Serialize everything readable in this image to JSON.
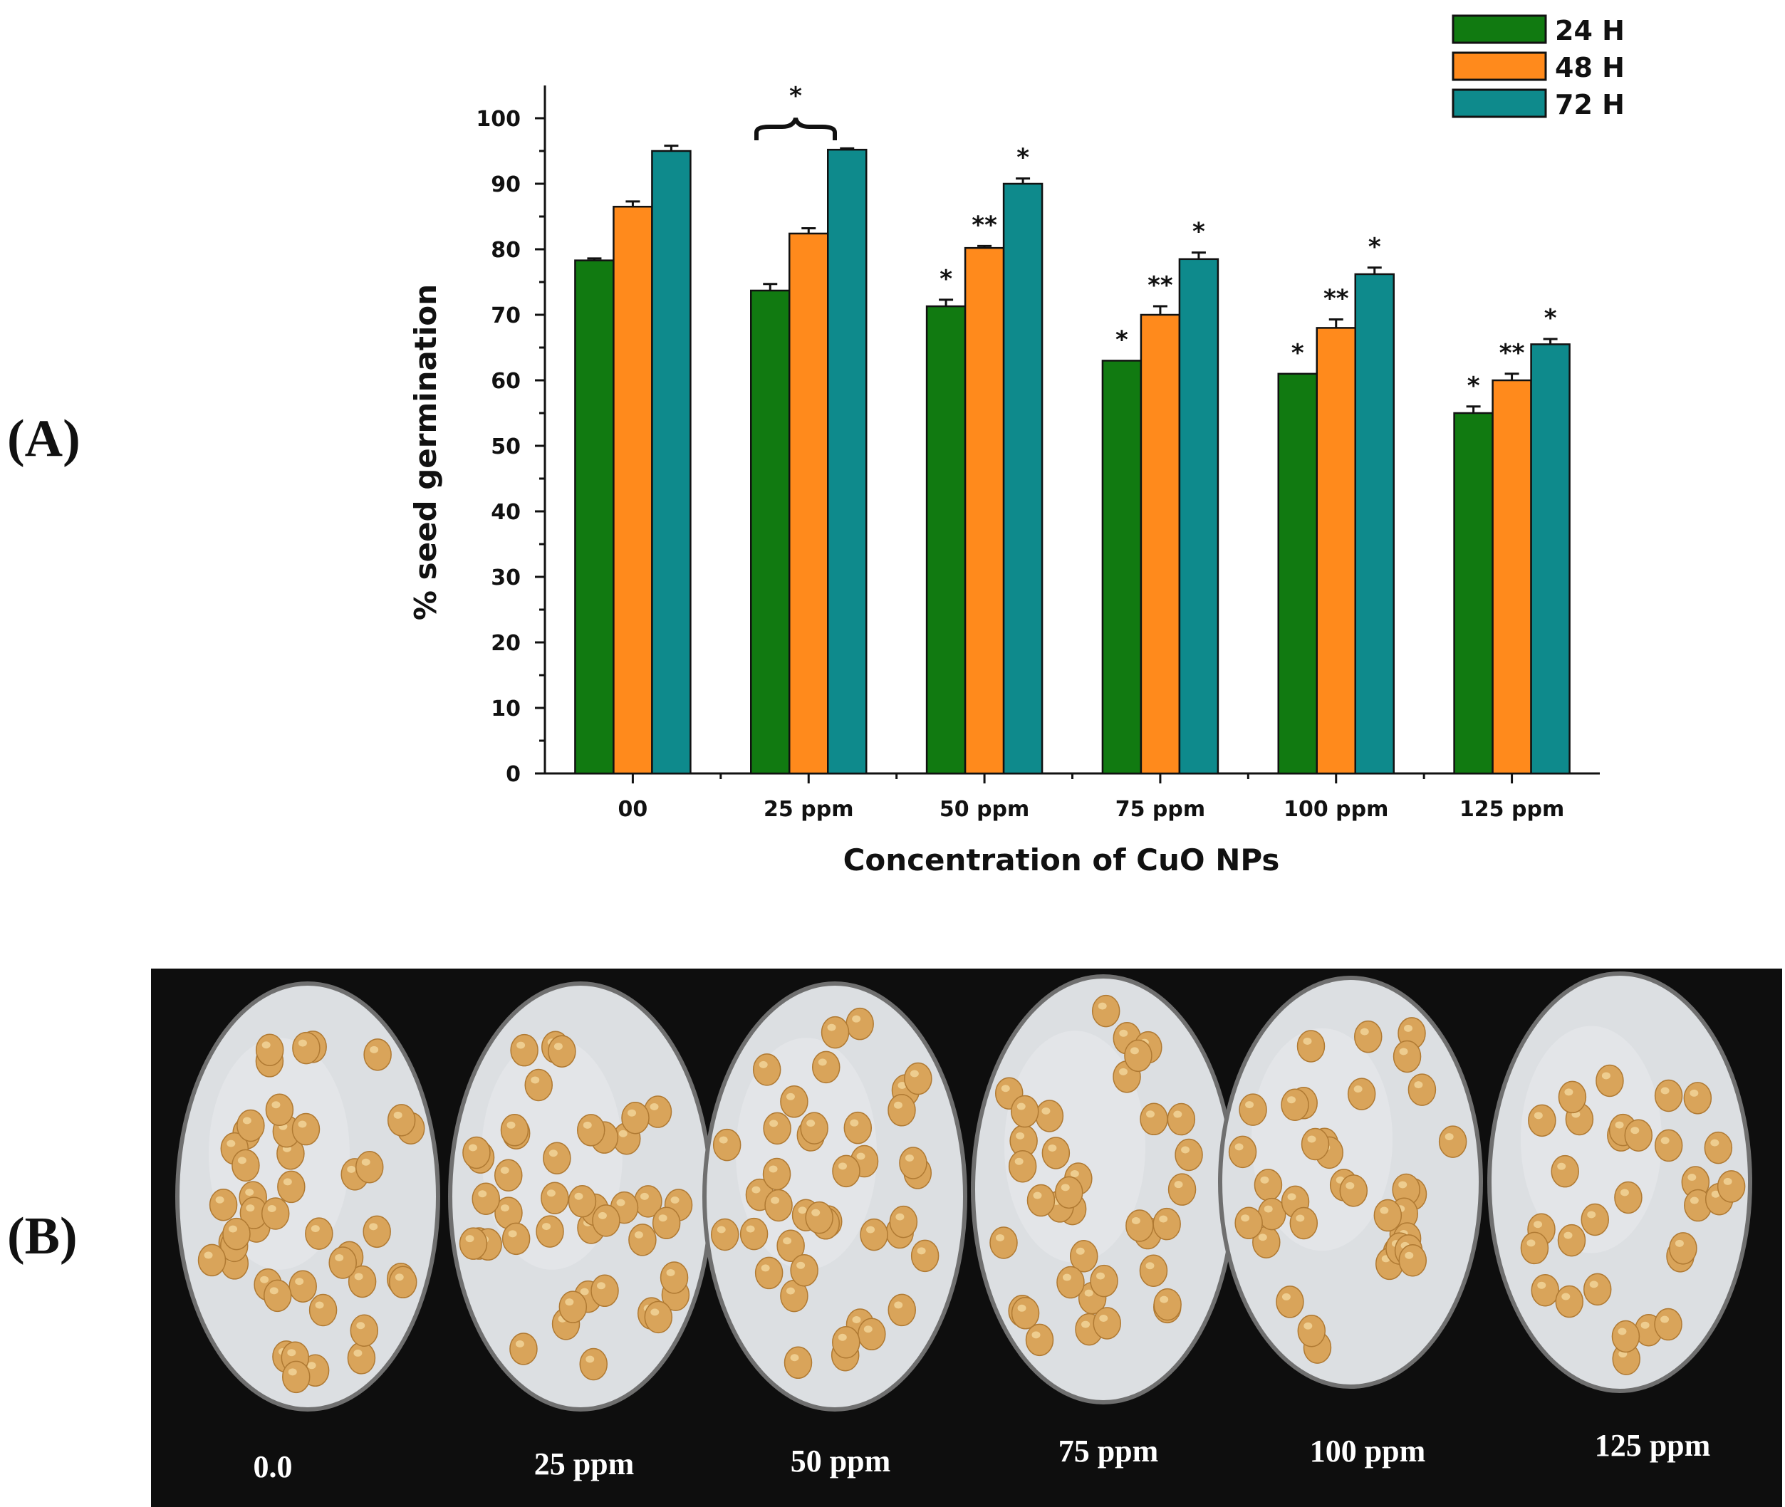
{
  "panels": {
    "a_label": "(A)",
    "b_label": "(B)"
  },
  "colors": {
    "s24": "#117a11",
    "s48": "#ff8a1c",
    "s72": "#0e8a8c",
    "photo_bg": "#0e0e0e",
    "seed": "#d9a45a"
  },
  "chart_data": {
    "type": "bar",
    "title": "",
    "xlabel": "Concentration of CuO NPs",
    "ylabel": "% seed germination",
    "ylim": [
      0,
      105
    ],
    "yticks": [
      0,
      10,
      20,
      30,
      40,
      50,
      60,
      70,
      80,
      90,
      100
    ],
    "ytick_labels": [
      "0",
      "10",
      "20",
      "30",
      "40",
      "50",
      "60",
      "70",
      "80",
      "90",
      "100"
    ],
    "categories": [
      "00",
      "25 ppm",
      "50 ppm",
      "75 ppm",
      "100 ppm",
      "125 ppm"
    ],
    "series": [
      {
        "name": "24 H",
        "color": "#117a11",
        "values": [
          78.3,
          73.7,
          71.3,
          63.0,
          61.0,
          55.0
        ],
        "errors": [
          0.3,
          1.0,
          1.0,
          0.0,
          0.0,
          1.0
        ],
        "stars": [
          "",
          "",
          "*",
          "*",
          "*",
          "*"
        ]
      },
      {
        "name": "48 H",
        "color": "#ff8a1c",
        "values": [
          86.5,
          82.4,
          80.2,
          70.0,
          68.0,
          60.0
        ],
        "errors": [
          0.8,
          0.8,
          0.3,
          1.3,
          1.3,
          1.0
        ],
        "stars": [
          "",
          "",
          "**",
          "**",
          "**",
          "**"
        ]
      },
      {
        "name": "72 H",
        "color": "#0e8a8c",
        "values": [
          95.0,
          95.2,
          90.0,
          78.5,
          76.2,
          65.5
        ],
        "errors": [
          0.8,
          0.2,
          0.8,
          1.0,
          1.0,
          0.8
        ],
        "stars": [
          "",
          "",
          "*",
          "*",
          "*",
          "*"
        ]
      }
    ],
    "bracket_label": "*",
    "legend": {
      "position": "top-right",
      "entries": [
        "24 H",
        "48 H",
        "72 H"
      ]
    }
  },
  "photo": {
    "plates": [
      {
        "label": "0.0",
        "seed_count": 45
      },
      {
        "label": "25 ppm",
        "seed_count": 42
      },
      {
        "label": "50 ppm",
        "seed_count": 40
      },
      {
        "label": "75 ppm",
        "seed_count": 36
      },
      {
        "label": "100 ppm",
        "seed_count": 36
      },
      {
        "label": "125 ppm",
        "seed_count": 30
      }
    ]
  }
}
